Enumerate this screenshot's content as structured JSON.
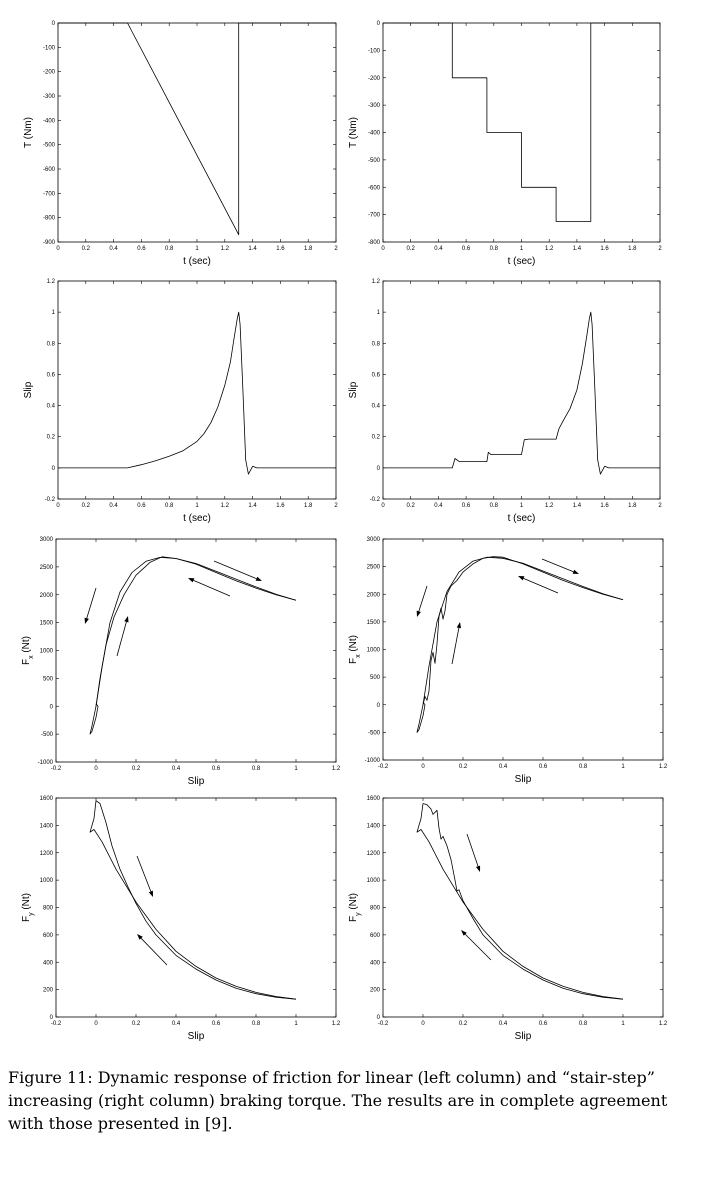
{
  "caption": "Figure 11: Dynamic response of friction for linear (left column) and “stair-step” increasing (right column) braking torque. The results are in complete agreement with those presented in [9].",
  "chart_data": [
    {
      "id": "torque-linear",
      "type": "line",
      "xlabel": "t (sec)",
      "ylabel": "T (Nm)",
      "xlim": [
        0,
        2
      ],
      "ylim": [
        -900,
        0
      ],
      "xticks": [
        "0",
        "0.2",
        "0.4",
        "0.6",
        "0.8",
        "1",
        "1.2",
        "1.4",
        "1.6",
        "1.8",
        "2"
      ],
      "yticks": [
        "-900",
        "-800",
        "-700",
        "-600",
        "-500",
        "-400",
        "-300",
        "-200",
        "-100",
        "0"
      ],
      "series": [
        {
          "x": [
            0,
            0.5,
            1.3,
            1.3,
            2
          ],
          "y": [
            0,
            0,
            -870,
            0,
            0
          ]
        }
      ]
    },
    {
      "id": "torque-stair",
      "type": "line",
      "xlabel": "t (sec)",
      "ylabel": "T (Nm)",
      "xlim": [
        0,
        2
      ],
      "ylim": [
        -800,
        0
      ],
      "xticks": [
        "0",
        "0.2",
        "0.4",
        "0.6",
        "0.8",
        "1",
        "1.2",
        "1.4",
        "1.6",
        "1.8",
        "2"
      ],
      "yticks": [
        "-800",
        "-700",
        "-600",
        "-500",
        "-400",
        "-300",
        "-200",
        "-100",
        "0"
      ],
      "series": [
        {
          "x": [
            0,
            0.5,
            0.5,
            0.75,
            0.75,
            1.0,
            1.0,
            1.25,
            1.25,
            1.5,
            1.5,
            2
          ],
          "y": [
            0,
            0,
            -200,
            -200,
            -400,
            -400,
            -600,
            -600,
            -725,
            -725,
            0,
            0
          ]
        }
      ]
    },
    {
      "id": "slip-linear",
      "type": "line",
      "xlabel": "t (sec)",
      "ylabel": "Slip",
      "xlim": [
        0,
        2
      ],
      "ylim": [
        -0.2,
        1.2
      ],
      "xticks": [
        "0",
        "0.2",
        "0.4",
        "0.6",
        "0.8",
        "1",
        "1.2",
        "1.4",
        "1.6",
        "1.8",
        "2"
      ],
      "yticks": [
        "-0.2",
        "0",
        "0.2",
        "0.4",
        "0.6",
        "0.8",
        "1",
        "1.2"
      ],
      "series": [
        {
          "x": [
            0,
            0.5,
            0.6,
            0.7,
            0.8,
            0.9,
            1.0,
            1.05,
            1.1,
            1.15,
            1.2,
            1.24,
            1.27,
            1.29,
            1.3,
            1.31,
            1.33,
            1.35,
            1.37,
            1.4,
            1.43,
            2
          ],
          "y": [
            0,
            0,
            0.02,
            0.045,
            0.075,
            0.11,
            0.17,
            0.22,
            0.29,
            0.39,
            0.53,
            0.68,
            0.85,
            0.96,
            1.0,
            0.92,
            0.5,
            0.05,
            -0.04,
            0.01,
            0,
            0
          ]
        }
      ]
    },
    {
      "id": "slip-stair",
      "type": "line",
      "xlabel": "t (sec)",
      "ylabel": "Slip",
      "xlim": [
        0,
        2
      ],
      "ylim": [
        -0.2,
        1.2
      ],
      "xticks": [
        "0",
        "0.2",
        "0.4",
        "0.6",
        "0.8",
        "1",
        "1.2",
        "1.4",
        "1.6",
        "1.8",
        "2"
      ],
      "yticks": [
        "-0.2",
        "0",
        "0.2",
        "0.4",
        "0.6",
        "0.8",
        "1",
        "1.2"
      ],
      "series": [
        {
          "x": [
            0,
            0.5,
            0.52,
            0.55,
            0.75,
            0.76,
            0.78,
            1.0,
            1.02,
            1.05,
            1.25,
            1.27,
            1.3,
            1.35,
            1.4,
            1.44,
            1.47,
            1.49,
            1.5,
            1.51,
            1.53,
            1.55,
            1.57,
            1.6,
            1.63,
            2
          ],
          "y": [
            0,
            0,
            0.06,
            0.04,
            0.04,
            0.1,
            0.085,
            0.085,
            0.18,
            0.185,
            0.185,
            0.25,
            0.3,
            0.38,
            0.5,
            0.67,
            0.84,
            0.96,
            1.0,
            0.92,
            0.5,
            0.05,
            -0.04,
            0.01,
            0,
            0
          ]
        }
      ]
    },
    {
      "id": "fx-linear",
      "type": "line",
      "xlabel": "Slip",
      "ylabel": "F_x (Nt)",
      "ylabel_main": "F",
      "ylabel_sub": "x",
      "ylabel_tail": " (Nt)",
      "xlim": [
        -0.2,
        1.2
      ],
      "ylim": [
        -1000,
        3000
      ],
      "xticks": [
        "-0.2",
        "0",
        "0.2",
        "0.4",
        "0.6",
        "0.8",
        "1",
        "1.2"
      ],
      "yticks": [
        "-1000",
        "-500",
        "0",
        "500",
        "1000",
        "1500",
        "2000",
        "2500",
        "3000"
      ],
      "series": [
        {
          "x": [
            0,
            0.02,
            0.05,
            0.09,
            0.14,
            0.2,
            0.27,
            0.33,
            0.4,
            0.5,
            0.6,
            0.7,
            0.8,
            0.9,
            1.0
          ],
          "y": [
            0,
            500,
            1100,
            1600,
            2000,
            2350,
            2580,
            2680,
            2650,
            2550,
            2400,
            2250,
            2120,
            2000,
            1900
          ]
        },
        {
          "x": [
            1.0,
            0.9,
            0.8,
            0.7,
            0.6,
            0.5,
            0.4,
            0.32,
            0.25,
            0.18,
            0.12,
            0.07,
            0.03,
            0.0,
            -0.02,
            -0.03,
            -0.02,
            0.0,
            0.01,
            0.0
          ],
          "y": [
            1900,
            2010,
            2140,
            2280,
            2420,
            2560,
            2650,
            2670,
            2600,
            2400,
            2050,
            1500,
            700,
            0,
            -350,
            -500,
            -450,
            -200,
            0,
            50
          ]
        }
      ]
    },
    {
      "id": "fx-stair",
      "type": "line",
      "xlabel": "Slip",
      "ylabel": "F_x (Nt)",
      "ylabel_main": "F",
      "ylabel_sub": "x",
      "ylabel_tail": " (Nt)",
      "xlim": [
        -0.2,
        1.2
      ],
      "ylim": [
        -1000,
        3000
      ],
      "xticks": [
        "-0.2",
        "0",
        "0.2",
        "0.4",
        "0.6",
        "0.8",
        "1",
        "1.2"
      ],
      "yticks": [
        "-1000",
        "-500",
        "0",
        "500",
        "1000",
        "1500",
        "2000",
        "2500",
        "3000"
      ],
      "series": [
        {
          "x": [
            0,
            0.01,
            0.02,
            0.03,
            0.04,
            0.05,
            0.06,
            0.07,
            0.08,
            0.09,
            0.1,
            0.11,
            0.12,
            0.14,
            0.17,
            0.2,
            0.25,
            0.3,
            0.35,
            0.4,
            0.5,
            0.6,
            0.7,
            0.8,
            0.9,
            1.0
          ],
          "y": [
            0,
            150,
            80,
            250,
            800,
            950,
            750,
            1100,
            1600,
            1750,
            1550,
            1700,
            2000,
            2150,
            2250,
            2400,
            2550,
            2650,
            2680,
            2670,
            2550,
            2400,
            2250,
            2120,
            2000,
            1900
          ]
        },
        {
          "x": [
            1.0,
            0.9,
            0.8,
            0.7,
            0.6,
            0.5,
            0.4,
            0.32,
            0.25,
            0.18,
            0.12,
            0.07,
            0.03,
            0.0,
            -0.02,
            -0.03,
            -0.02,
            0.0,
            0.01,
            0.0
          ],
          "y": [
            1900,
            2010,
            2140,
            2280,
            2420,
            2560,
            2650,
            2670,
            2600,
            2400,
            2050,
            1500,
            700,
            0,
            -350,
            -500,
            -450,
            -200,
            0,
            50
          ]
        }
      ]
    },
    {
      "id": "fy-linear",
      "type": "line",
      "xlabel": "Slip",
      "ylabel": "F_y (Nt)",
      "ylabel_main": "F",
      "ylabel_sub": "y",
      "ylabel_tail": " (Nt)",
      "xlim": [
        -0.2,
        1.2
      ],
      "ylim": [
        0,
        1600
      ],
      "xticks": [
        "-0.2",
        "0",
        "0.2",
        "0.4",
        "0.6",
        "0.8",
        "1",
        "1.2"
      ],
      "yticks": [
        "0",
        "200",
        "400",
        "600",
        "800",
        "1000",
        "1200",
        "1400",
        "1600"
      ],
      "series": [
        {
          "x": [
            0,
            0.02,
            0.05,
            0.08,
            0.12,
            0.16,
            0.2,
            0.25,
            0.3,
            0.4,
            0.5,
            0.6,
            0.7,
            0.8,
            0.9,
            1.0
          ],
          "y": [
            1580,
            1560,
            1420,
            1250,
            1080,
            950,
            830,
            700,
            600,
            450,
            350,
            270,
            210,
            170,
            145,
            130
          ]
        },
        {
          "x": [
            1.0,
            0.9,
            0.8,
            0.7,
            0.6,
            0.5,
            0.4,
            0.3,
            0.2,
            0.1,
            0.03,
            -0.01,
            -0.03,
            -0.01,
            0.0
          ],
          "y": [
            130,
            150,
            180,
            225,
            285,
            370,
            480,
            640,
            840,
            1080,
            1280,
            1370,
            1350,
            1450,
            1580
          ]
        }
      ]
    },
    {
      "id": "fy-stair",
      "type": "line",
      "xlabel": "Slip",
      "ylabel": "F_y (Nt)",
      "ylabel_main": "F",
      "ylabel_sub": "y",
      "ylabel_tail": " (Nt)",
      "xlim": [
        -0.2,
        1.2
      ],
      "ylim": [
        0,
        1600
      ],
      "xticks": [
        "-0.2",
        "0",
        "0.2",
        "0.4",
        "0.6",
        "0.8",
        "1",
        "1.2"
      ],
      "yticks": [
        "0",
        "200",
        "400",
        "600",
        "800",
        "1000",
        "1200",
        "1400",
        "1600"
      ],
      "series": [
        {
          "x": [
            0,
            0.02,
            0.04,
            0.05,
            0.07,
            0.08,
            0.09,
            0.1,
            0.12,
            0.14,
            0.16,
            0.17,
            0.18,
            0.2,
            0.25,
            0.3,
            0.4,
            0.5,
            0.6,
            0.7,
            0.8,
            0.9,
            1.0
          ],
          "y": [
            1560,
            1550,
            1520,
            1480,
            1510,
            1380,
            1300,
            1320,
            1250,
            1150,
            1000,
            920,
            930,
            850,
            720,
            600,
            450,
            350,
            270,
            210,
            170,
            145,
            130
          ]
        },
        {
          "x": [
            1.0,
            0.9,
            0.8,
            0.7,
            0.6,
            0.5,
            0.4,
            0.3,
            0.2,
            0.1,
            0.03,
            -0.01,
            -0.03,
            -0.01,
            0.0
          ],
          "y": [
            130,
            150,
            180,
            225,
            285,
            370,
            480,
            640,
            840,
            1080,
            1280,
            1370,
            1350,
            1450,
            1560
          ]
        }
      ]
    }
  ]
}
